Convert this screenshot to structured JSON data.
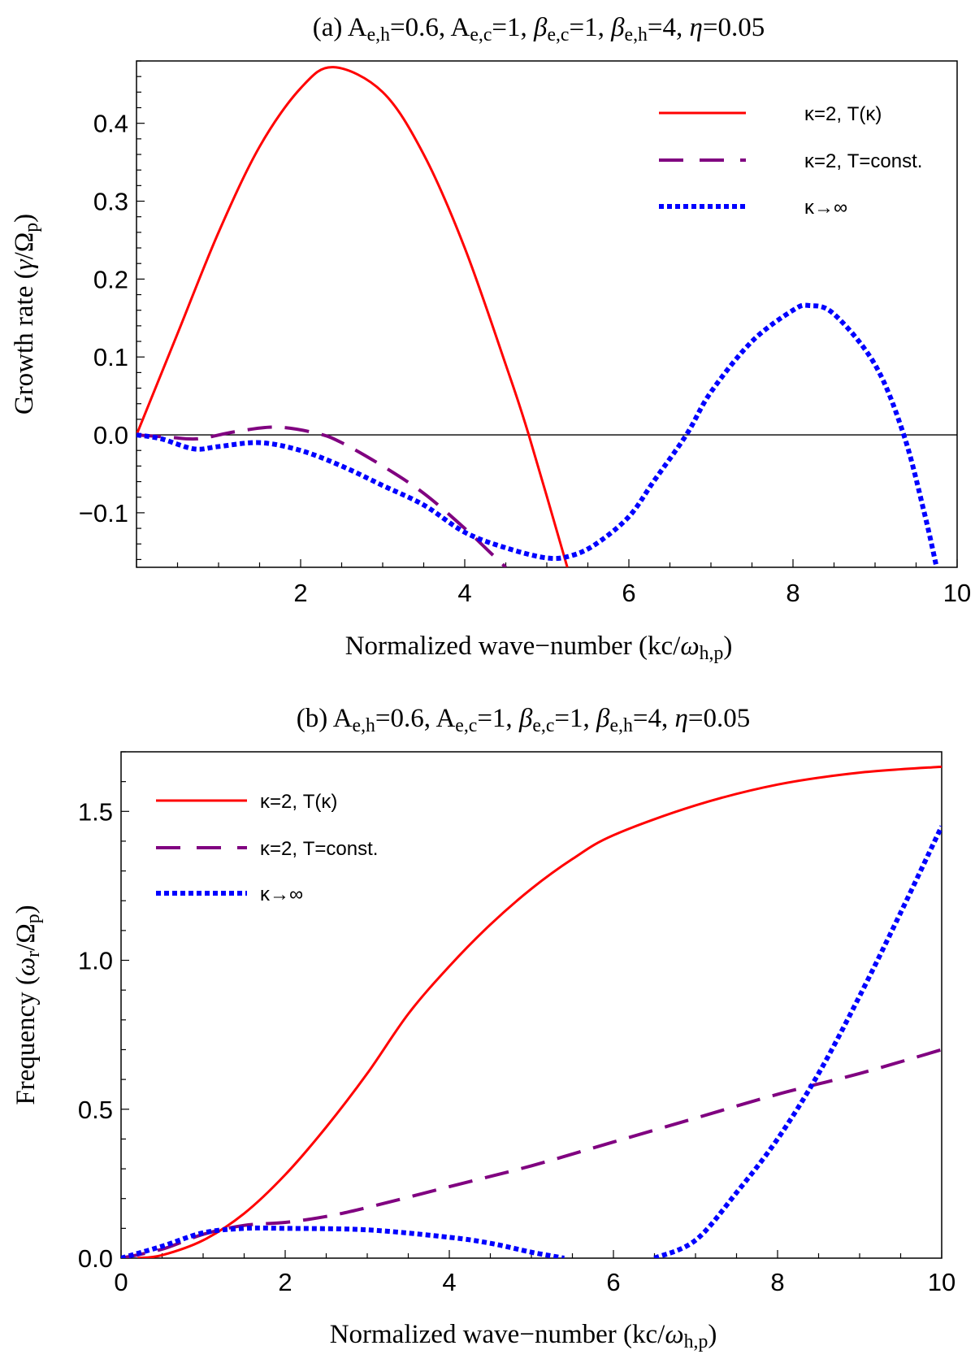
{
  "chart_data": [
    {
      "type": "line",
      "title_parts": [
        {
          "t": "(a) A"
        },
        {
          "t": "e,h",
          "sub": true
        },
        {
          "t": "=0.6, A"
        },
        {
          "t": "e,c",
          "sub": true
        },
        {
          "t": "=1, "
        },
        {
          "t": "β",
          "it": true
        },
        {
          "t": "e,c",
          "sub": true
        },
        {
          "t": "=1, "
        },
        {
          "t": "β",
          "it": true
        },
        {
          "t": "e,h",
          "sub": true
        },
        {
          "t": "=4, "
        },
        {
          "t": "η",
          "it": true
        },
        {
          "t": "=0.05"
        }
      ],
      "xlabel_parts": [
        {
          "t": "Normalized wave−number  (kc/"
        },
        {
          "t": "ω",
          "it": true
        },
        {
          "t": "h,p",
          "sub": true
        },
        {
          "t": ")"
        }
      ],
      "ylabel_parts": [
        {
          "t": "Growth rate ("
        },
        {
          "t": "γ",
          "it": true
        },
        {
          "t": "/Ω"
        },
        {
          "t": "p",
          "sub": true
        },
        {
          "t": ")"
        }
      ],
      "xlim": [
        0,
        10
      ],
      "ylim": [
        -0.17,
        0.48
      ],
      "xticks": [
        2,
        4,
        6,
        8,
        10
      ],
      "xtick_labels": [
        "2",
        "4",
        "6",
        "8",
        "10"
      ],
      "yticks": [
        -0.1,
        0.0,
        0.1,
        0.2,
        0.3,
        0.4
      ],
      "ytick_labels": [
        "−0.1",
        "0.0",
        "0.1",
        "0.2",
        "0.3",
        "0.4"
      ],
      "x_minor_step": 0.5,
      "y_minor_step": 0.02,
      "zero_line": true,
      "legend_placement": "top-right",
      "series": [
        {
          "name": "κ=2, T(κ)",
          "color": "#ff0000",
          "style": "solid",
          "x": [
            0,
            0.5,
            1,
            1.5,
            2,
            2.4,
            3,
            3.5,
            4,
            4.5,
            4.78,
            5.25
          ],
          "y": [
            0,
            0.13,
            0.26,
            0.37,
            0.445,
            0.472,
            0.44,
            0.36,
            0.24,
            0.09,
            0,
            -0.17
          ]
        },
        {
          "name": "κ=2, T=const.",
          "color": "#800080",
          "style": "dashed",
          "x": [
            0,
            0.4,
            0.75,
            1.2,
            1.7,
            2.2,
            2.5,
            3,
            3.5,
            4,
            4.3,
            4.5
          ],
          "y": [
            0,
            -0.003,
            -0.005,
            0.004,
            0.01,
            0.002,
            -0.01,
            -0.04,
            -0.075,
            -0.12,
            -0.15,
            -0.17
          ]
        },
        {
          "name": "κ→∞",
          "color": "#0000ff",
          "style": "dotted",
          "x": [
            0,
            0.3,
            0.7,
            1,
            1.5,
            2,
            2.5,
            3,
            3.5,
            4,
            4.5,
            5,
            5.3,
            5.6,
            6,
            6.3,
            6.7,
            7,
            7.5,
            8,
            8.2,
            8.5,
            9,
            9.35,
            9.6,
            9.75
          ],
          "y": [
            0,
            -0.005,
            -0.018,
            -0.015,
            -0.01,
            -0.02,
            -0.04,
            -0.065,
            -0.09,
            -0.125,
            -0.145,
            -0.158,
            -0.155,
            -0.14,
            -0.105,
            -0.06,
            0,
            0.055,
            0.12,
            0.16,
            0.166,
            0.155,
            0.09,
            0,
            -0.1,
            -0.17
          ]
        }
      ]
    },
    {
      "type": "line",
      "title_parts": [
        {
          "t": "(b) A"
        },
        {
          "t": "e,h",
          "sub": true
        },
        {
          "t": "=0.6, A"
        },
        {
          "t": "e,c",
          "sub": true
        },
        {
          "t": "=1, "
        },
        {
          "t": "β",
          "it": true
        },
        {
          "t": "e,c",
          "sub": true
        },
        {
          "t": "=1, "
        },
        {
          "t": "β",
          "it": true
        },
        {
          "t": "e,h",
          "sub": true
        },
        {
          "t": "=4, "
        },
        {
          "t": "η",
          "it": true
        },
        {
          "t": "=0.05"
        }
      ],
      "xlabel_parts": [
        {
          "t": "Normalized wave−number  (kc/"
        },
        {
          "t": "ω",
          "it": true
        },
        {
          "t": "h,p",
          "sub": true
        },
        {
          "t": ")"
        }
      ],
      "ylabel_parts": [
        {
          "t": "Frequency ("
        },
        {
          "t": "ω",
          "it": true
        },
        {
          "t": "r",
          "sub": true
        },
        {
          "t": "/Ω"
        },
        {
          "t": "p",
          "sub": true
        },
        {
          "t": ")"
        }
      ],
      "xlim": [
        0,
        10
      ],
      "ylim": [
        0,
        1.7
      ],
      "xticks": [
        0,
        2,
        4,
        6,
        8,
        10
      ],
      "xtick_labels": [
        "0",
        "2",
        "4",
        "6",
        "8",
        "10"
      ],
      "yticks": [
        0.0,
        0.5,
        1.0,
        1.5
      ],
      "ytick_labels": [
        "0.0",
        "0.5",
        "1.0",
        "1.5"
      ],
      "x_minor_step": 0.5,
      "y_minor_step": 0.1,
      "zero_line": false,
      "legend_placement": "top-left",
      "series": [
        {
          "name": "κ=2, T(κ)",
          "color": "#ff0000",
          "style": "solid",
          "x": [
            0.2,
            0.5,
            1,
            1.5,
            2,
            2.5,
            3,
            3.5,
            4,
            4.5,
            5,
            5.5,
            6,
            7,
            8,
            9,
            10
          ],
          "y": [
            0,
            0.01,
            0.06,
            0.15,
            0.28,
            0.44,
            0.62,
            0.82,
            0.98,
            1.12,
            1.24,
            1.34,
            1.42,
            1.52,
            1.59,
            1.63,
            1.65
          ]
        },
        {
          "name": "κ=2, T=const.",
          "color": "#800080",
          "style": "dashed",
          "x": [
            0,
            0.5,
            1,
            1.5,
            2,
            2.5,
            3,
            4,
            5,
            6,
            7,
            8,
            9,
            10
          ],
          "y": [
            0,
            0.03,
            0.08,
            0.11,
            0.12,
            0.14,
            0.17,
            0.24,
            0.31,
            0.39,
            0.47,
            0.55,
            0.62,
            0.7
          ]
        },
        {
          "name": "κ→∞",
          "color": "#0000ff",
          "style": "dotted",
          "segments": [
            {
              "x": [
                0,
                0.5,
                1,
                1.5,
                2,
                3,
                4,
                4.5,
                5,
                5.4
              ],
              "y": [
                0,
                0.04,
                0.085,
                0.1,
                0.1,
                0.095,
                0.07,
                0.05,
                0.02,
                0
              ]
            },
            {
              "x": [
                6.5,
                7,
                7.5,
                8,
                8.5,
                9,
                9.5,
                10
              ],
              "y": [
                0,
                0.06,
                0.22,
                0.4,
                0.62,
                0.88,
                1.16,
                1.45
              ]
            }
          ]
        }
      ]
    }
  ]
}
